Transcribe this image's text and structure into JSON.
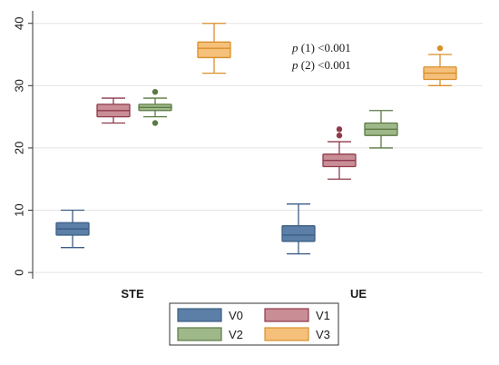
{
  "chart_data": {
    "type": "box",
    "categories": [
      "STE",
      "UE"
    ],
    "ylim": [
      -1,
      42
    ],
    "yticks": [
      0,
      10,
      20,
      30,
      40
    ],
    "grid": true,
    "legend_position": "bottom",
    "legend": [
      "V0",
      "V1",
      "V2",
      "V3"
    ],
    "annotations": [
      {
        "italic": "p",
        "text": " (1) <0.001"
      },
      {
        "italic": "p",
        "text": " (2) <0.001"
      }
    ],
    "series": [
      {
        "name": "V0",
        "fill": "#5b7fa6",
        "stroke": "#3d5e85",
        "boxes": [
          {
            "category": "STE",
            "whisker_low": 4,
            "q1": 6,
            "median": 7,
            "q3": 8,
            "whisker_high": 10,
            "outliers": []
          },
          {
            "category": "UE",
            "whisker_low": 3,
            "q1": 5,
            "median": 6,
            "q3": 7.5,
            "whisker_high": 11,
            "outliers": []
          }
        ]
      },
      {
        "name": "V1",
        "fill": "#c98d96",
        "stroke": "#8e3a4a",
        "boxes": [
          {
            "category": "STE",
            "whisker_low": 24,
            "q1": 25,
            "median": 26,
            "q3": 27,
            "whisker_high": 28,
            "outliers": []
          },
          {
            "category": "UE",
            "whisker_low": 15,
            "q1": 17,
            "median": 18,
            "q3": 19,
            "whisker_high": 21,
            "outliers": [
              22,
              23
            ]
          }
        ]
      },
      {
        "name": "V2",
        "fill": "#9fb88a",
        "stroke": "#5b7a44",
        "boxes": [
          {
            "category": "STE",
            "whisker_low": 25,
            "q1": 26,
            "median": 26.5,
            "q3": 27,
            "whisker_high": 28,
            "outliers": [
              24,
              29
            ]
          },
          {
            "category": "UE",
            "whisker_low": 20,
            "q1": 22,
            "median": 23,
            "q3": 24,
            "whisker_high": 26,
            "outliers": []
          }
        ]
      },
      {
        "name": "V3",
        "fill": "#f5c07a",
        "stroke": "#d9902a",
        "boxes": [
          {
            "category": "STE",
            "whisker_low": 32,
            "q1": 34.5,
            "median": 36,
            "q3": 37,
            "whisker_high": 40,
            "outliers": []
          },
          {
            "category": "UE",
            "whisker_low": 30,
            "q1": 31,
            "median": 32,
            "q3": 33,
            "whisker_high": 35,
            "outliers": [
              36
            ]
          }
        ]
      }
    ]
  }
}
